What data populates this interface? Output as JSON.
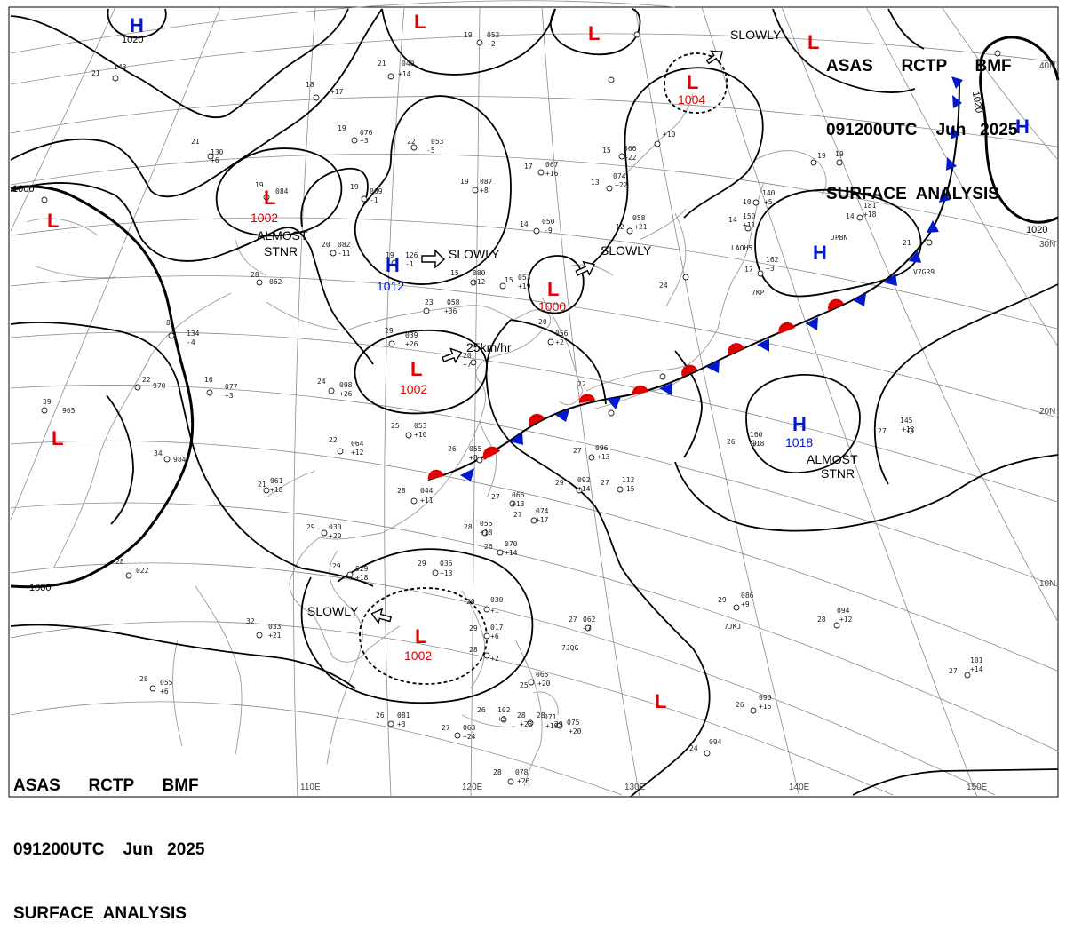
{
  "header_top": {
    "line1": "ASAS      RCTP      BMF",
    "line2": "091200UTC    Jun   2025",
    "line3": "SURFACE  ANALYSIS"
  },
  "header_bottom": {
    "line1": "ASAS      RCTP      BMF",
    "line2": "091200UTC    Jun   2025",
    "line3": "SURFACE  ANALYSIS"
  },
  "longitude_labels": [
    "110E",
    "120E",
    "130E",
    "140E",
    "150E"
  ],
  "latitude_labels": [
    "40N",
    "30N",
    "20N",
    "10N"
  ],
  "isobar_labels": [
    "1000",
    "1020",
    "1020",
    "1000",
    "1020"
  ],
  "pressure_systems": [
    {
      "kind": "H",
      "value": "1020"
    },
    {
      "kind": "L",
      "value": ""
    },
    {
      "kind": "L",
      "value": ""
    },
    {
      "kind": "L",
      "value": "1004"
    },
    {
      "kind": "L",
      "value": ""
    },
    {
      "kind": "H",
      "value": ""
    },
    {
      "kind": "L",
      "value": "1002"
    },
    {
      "kind": "L",
      "value": ""
    },
    {
      "kind": "H",
      "value": "1012"
    },
    {
      "kind": "L",
      "value": "1000"
    },
    {
      "kind": "H",
      "value": ""
    },
    {
      "kind": "L",
      "value": "1002"
    },
    {
      "kind": "L",
      "value": ""
    },
    {
      "kind": "H",
      "value": "1018"
    },
    {
      "kind": "L",
      "value": "1002"
    },
    {
      "kind": "L",
      "value": ""
    }
  ],
  "annotations": {
    "slowly_ne": "SLOWLY",
    "almost_stnr_w": "ALMOST",
    "stnr_w": "STNR",
    "slowly_h": "SLOWLY",
    "slowly_l1000": "SLOWLY",
    "speed": "25km/hr",
    "almost_stnr_e": "ALMOST",
    "stnr_e": "STNR",
    "slowly_s": "SLOWLY"
  },
  "station_plots": [
    {
      "t": "19",
      "p": "052",
      "d": "-2"
    },
    {
      "t": "21",
      "p": "040",
      "d": "+14"
    },
    {
      "t": "21",
      "p": "143",
      "d": ""
    },
    {
      "t": "18",
      "p": "",
      "d": "+17"
    },
    {
      "t": "19",
      "p": "076",
      "d": "+3"
    },
    {
      "t": "22",
      "p": "053",
      "d": "-5"
    },
    {
      "t": "21",
      "p": "130",
      "d": "+6"
    },
    {
      "t": "19",
      "p": "084",
      "d": ""
    },
    {
      "t": "19",
      "p": "069",
      "d": "-1"
    },
    {
      "t": "19",
      "p": "087",
      "d": "+8"
    },
    {
      "t": "17",
      "p": "067",
      "d": "+16"
    },
    {
      "t": "13",
      "p": "074",
      "d": "+22"
    },
    {
      "t": "15",
      "p": "066",
      "d": "+22"
    },
    {
      "t": "14",
      "p": "050",
      "d": "-9"
    },
    {
      "t": "12",
      "p": "058",
      "d": "+21"
    },
    {
      "t": "20",
      "p": "082",
      "d": "-11"
    },
    {
      "t": "19",
      "p": "126",
      "d": "-1"
    },
    {
      "t": "28",
      "p": "062",
      "d": ""
    },
    {
      "t": "15",
      "p": "080",
      "d": "+12"
    },
    {
      "t": "15",
      "p": "053",
      "d": "+19"
    },
    {
      "t": "23",
      "p": "058",
      "d": "+36"
    },
    {
      "t": "8",
      "p": "134",
      "d": "-4"
    },
    {
      "t": "29",
      "p": "039",
      "d": "+26"
    },
    {
      "t": "20",
      "p": "056",
      "d": "+2"
    },
    {
      "t": "20",
      "p": "",
      "d": "+7"
    },
    {
      "t": "16",
      "p": "077",
      "d": "+3"
    },
    {
      "t": "24",
      "p": "098",
      "d": "+26"
    },
    {
      "t": "22",
      "p": "970",
      "d": ""
    },
    {
      "t": "39",
      "p": "965",
      "d": ""
    },
    {
      "t": "25",
      "p": "053",
      "d": "+10"
    },
    {
      "t": "22",
      "p": "064",
      "d": "+12"
    },
    {
      "t": "34",
      "p": "984",
      "d": ""
    },
    {
      "t": "26",
      "p": "055",
      "d": "+8"
    },
    {
      "t": "27",
      "p": "096",
      "d": "+13"
    },
    {
      "t": "29",
      "p": "092",
      "d": "+14"
    },
    {
      "t": "27",
      "p": "112",
      "d": "+15"
    },
    {
      "t": "21",
      "p": "061",
      "d": "+18"
    },
    {
      "t": "28",
      "p": "044",
      "d": "+11"
    },
    {
      "t": "27",
      "p": "066",
      "d": "+13"
    },
    {
      "t": "27",
      "p": "074",
      "d": "+17"
    },
    {
      "t": "29",
      "p": "030",
      "d": "+20"
    },
    {
      "t": "28",
      "p": "055",
      "d": "+18"
    },
    {
      "t": "26",
      "p": "070",
      "d": "+14"
    },
    {
      "t": "28",
      "p": "022",
      "d": ""
    },
    {
      "t": "29",
      "p": "029",
      "d": "+18"
    },
    {
      "t": "29",
      "p": "036",
      "d": "+13"
    },
    {
      "t": "29",
      "p": "030",
      "d": "+1"
    },
    {
      "t": "27",
      "p": "062",
      "d": "+7"
    },
    {
      "t": "32",
      "p": "033",
      "d": "+21"
    },
    {
      "t": "29",
      "p": "017",
      "d": "+6"
    },
    {
      "t": "28",
      "p": "",
      "d": "+2"
    },
    {
      "t": "29",
      "p": "086",
      "d": "+9"
    },
    {
      "t": "28",
      "p": "094",
      "d": "+12"
    },
    {
      "t": "28",
      "p": "055",
      "d": "+6"
    },
    {
      "t": "25",
      "p": "065",
      "d": "+20"
    },
    {
      "t": "26",
      "p": "081",
      "d": "+3"
    },
    {
      "t": "26",
      "p": "102",
      "d": "+3"
    },
    {
      "t": "27",
      "p": "063",
      "d": "+24"
    },
    {
      "t": "28",
      "p": "",
      "d": "+23"
    },
    {
      "t": "28",
      "p": "071",
      "d": "+19"
    },
    {
      "t": "29",
      "p": "075",
      "d": "+20"
    },
    {
      "t": "26",
      "p": "090",
      "d": "+15"
    },
    {
      "t": "27",
      "p": "101",
      "d": "+14"
    },
    {
      "t": "28",
      "p": "078",
      "d": "+26"
    },
    {
      "t": "24",
      "p": "094",
      "d": ""
    },
    {
      "t": "26",
      "p": "160",
      "d": "+18"
    },
    {
      "t": "27",
      "p": "145",
      "d": "+12"
    },
    {
      "t": "10",
      "p": "140",
      "d": "+5"
    },
    {
      "t": "14",
      "p": "150",
      "d": "+11"
    },
    {
      "t": "14",
      "p": "181",
      "d": "+18"
    },
    {
      "t": "17",
      "p": "162",
      "d": "+3"
    },
    {
      "t": "21",
      "p": "",
      "d": ""
    },
    {
      "t": "24",
      "p": "",
      "d": ""
    },
    {
      "t": "22",
      "p": "",
      "d": ""
    },
    {
      "t": "19",
      "p": "",
      "d": ""
    },
    {
      "t": "19",
      "p": "",
      "d": ""
    },
    {
      "t": "15",
      "p": "",
      "d": "+10"
    }
  ],
  "station_ids": [
    "LAOH5",
    "JPBN",
    "V7GR9",
    "7KP",
    "7JKJ",
    "7JQG"
  ],
  "colors": {
    "low": "#e00000",
    "high": "#0018d0",
    "isobar": "#000000",
    "grid": "#8a8a8a",
    "coast": "#9a9a9a",
    "warm_front": "#e00000",
    "cold_front": "#0018d0"
  }
}
